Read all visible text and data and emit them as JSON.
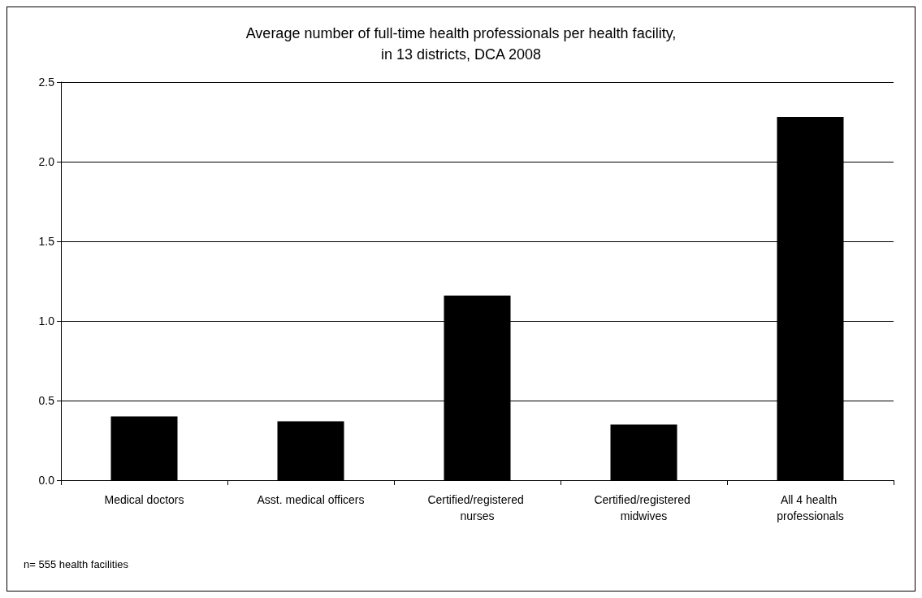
{
  "chart_data": {
    "type": "bar",
    "title": "Average number of full-time health professionals per health facility,\nin 13 districts, DCA 2008",
    "categories": [
      "Medical doctors",
      "Asst. medical officers",
      "Certified/registered nurses",
      "Certified/registered midwives",
      "All 4 health professionals"
    ],
    "values": [
      0.4,
      0.37,
      1.16,
      0.35,
      2.28
    ],
    "color": "#000000",
    "ylim": [
      0,
      2.5
    ],
    "yticks": [
      {
        "value": 0,
        "label": "0.0"
      },
      {
        "value": 0.5,
        "label": "0.5"
      },
      {
        "value": 1,
        "label": "1.0"
      },
      {
        "value": 1.5,
        "label": "1.5"
      },
      {
        "value": 2,
        "label": "2.0"
      },
      {
        "value": 2.5,
        "label": "2.5"
      }
    ],
    "grid": "y",
    "annotations": [
      "n= 555 health facilities"
    ]
  }
}
